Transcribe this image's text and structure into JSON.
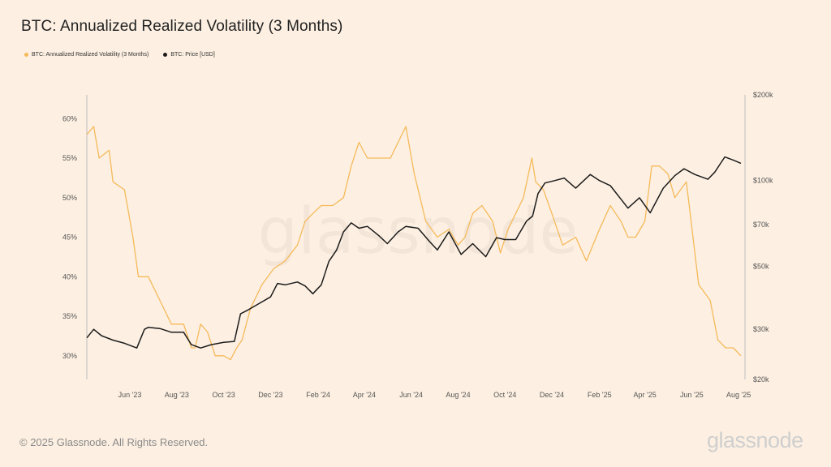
{
  "title": "BTC: Annualized Realized Volatility (3 Months)",
  "legend": {
    "vol_label": "BTC: Annualized Realized Volatility (3 Months)",
    "price_label": "BTC: Price [USD]"
  },
  "footer": "© 2025 Glassnode. All Rights Reserved.",
  "brand": "glassnode",
  "watermark": "glassnode",
  "colors": {
    "background": "#fdf0e2",
    "volatility": "#f5b95a",
    "price": "#1c1c1c",
    "axis": "#bdbdbd",
    "tick_text": "#555555"
  },
  "chart_data": {
    "type": "line",
    "title": "BTC: Annualized Realized Volatility (3 Months)",
    "legend_position": "top-left",
    "grid": false,
    "x_range": [
      "2023-04-06",
      "2025-08-04"
    ],
    "x_ticks": [
      {
        "date": "2023-06-01",
        "label": "Jun '23"
      },
      {
        "date": "2023-08-01",
        "label": "Aug '23"
      },
      {
        "date": "2023-10-01",
        "label": "Oct '23"
      },
      {
        "date": "2023-12-01",
        "label": "Dec '23"
      },
      {
        "date": "2024-02-01",
        "label": "Feb '24"
      },
      {
        "date": "2024-04-01",
        "label": "Apr '24"
      },
      {
        "date": "2024-06-01",
        "label": "Jun '24"
      },
      {
        "date": "2024-08-01",
        "label": "Aug '24"
      },
      {
        "date": "2024-10-01",
        "label": "Oct '24"
      },
      {
        "date": "2024-12-01",
        "label": "Dec '24"
      },
      {
        "date": "2025-02-01",
        "label": "Feb '25"
      },
      {
        "date": "2025-04-01",
        "label": "Apr '25"
      },
      {
        "date": "2025-06-01",
        "label": "Jun '25"
      },
      {
        "date": "2025-08-01",
        "label": "Aug '25"
      }
    ],
    "y_left": {
      "unit": "%",
      "range": [
        27,
        63
      ],
      "ticks": [
        {
          "value": 30,
          "label": "30%"
        },
        {
          "value": 35,
          "label": "35%"
        },
        {
          "value": 40,
          "label": "40%"
        },
        {
          "value": 45,
          "label": "45%"
        },
        {
          "value": 50,
          "label": "50%"
        },
        {
          "value": 55,
          "label": "55%"
        },
        {
          "value": 60,
          "label": "60%"
        }
      ]
    },
    "y_right": {
      "unit": "USD",
      "scale": "log",
      "range": [
        20000,
        200000
      ],
      "ticks": [
        {
          "value": 20000,
          "label": "$20k"
        },
        {
          "value": 30000,
          "label": "$30k"
        },
        {
          "value": 50000,
          "label": "$50k"
        },
        {
          "value": 70000,
          "label": "$70k"
        },
        {
          "value": 100000,
          "label": "$100k"
        },
        {
          "value": 200000,
          "label": "$200k"
        }
      ]
    },
    "series": [
      {
        "name": "BTC: Annualized Realized Volatility (3 Months)",
        "axis": "left",
        "x": [
          "2023-04-06",
          "2023-04-15",
          "2023-04-22",
          "2023-05-05",
          "2023-05-10",
          "2023-05-25",
          "2023-06-05",
          "2023-06-12",
          "2023-06-25",
          "2023-07-10",
          "2023-07-25",
          "2023-08-10",
          "2023-08-20",
          "2023-08-25",
          "2023-09-01",
          "2023-09-10",
          "2023-09-20",
          "2023-10-01",
          "2023-10-10",
          "2023-10-18",
          "2023-10-25",
          "2023-11-05",
          "2023-11-20",
          "2023-12-05",
          "2023-12-20",
          "2024-01-05",
          "2024-01-15",
          "2024-01-25",
          "2024-02-05",
          "2024-02-20",
          "2024-03-05",
          "2024-03-15",
          "2024-03-25",
          "2024-04-05",
          "2024-04-20",
          "2024-05-05",
          "2024-05-15",
          "2024-05-25",
          "2024-06-05",
          "2024-06-20",
          "2024-07-05",
          "2024-07-20",
          "2024-08-01",
          "2024-08-10",
          "2024-08-20",
          "2024-09-01",
          "2024-09-15",
          "2024-09-25",
          "2024-10-05",
          "2024-10-15",
          "2024-10-25",
          "2024-11-05",
          "2024-11-10",
          "2024-11-20",
          "2024-12-01",
          "2024-12-15",
          "2025-01-01",
          "2025-01-15",
          "2025-02-01",
          "2025-02-15",
          "2025-03-01",
          "2025-03-10",
          "2025-03-20",
          "2025-04-01",
          "2025-04-10",
          "2025-04-20",
          "2025-05-01",
          "2025-05-10",
          "2025-05-25",
          "2025-06-10",
          "2025-06-25",
          "2025-07-05",
          "2025-07-15",
          "2025-07-25",
          "2025-08-04"
        ],
        "values": [
          58,
          59,
          55,
          56,
          52,
          51,
          45,
          40,
          40,
          37,
          34,
          34,
          31,
          31,
          34,
          33,
          30,
          30,
          29.5,
          31,
          32,
          36,
          39,
          41,
          42,
          44,
          47,
          48,
          49,
          49,
          50,
          54,
          57,
          55,
          55,
          55,
          57,
          59,
          53,
          47,
          45,
          46,
          44,
          45,
          48,
          49,
          47,
          43,
          46,
          48,
          50,
          55,
          52,
          51,
          48,
          44,
          45,
          42,
          46,
          49,
          47,
          45,
          45,
          47,
          54,
          54,
          53,
          50,
          52,
          39,
          37,
          32,
          31,
          31,
          30
        ]
      },
      {
        "name": "BTC: Price [USD]",
        "axis": "right",
        "x": [
          "2023-04-06",
          "2023-04-15",
          "2023-04-25",
          "2023-05-10",
          "2023-05-25",
          "2023-06-10",
          "2023-06-20",
          "2023-06-25",
          "2023-07-10",
          "2023-07-25",
          "2023-08-10",
          "2023-08-20",
          "2023-09-01",
          "2023-09-15",
          "2023-10-01",
          "2023-10-15",
          "2023-10-23",
          "2023-11-01",
          "2023-11-15",
          "2023-12-01",
          "2023-12-10",
          "2023-12-20",
          "2024-01-05",
          "2024-01-15",
          "2024-01-25",
          "2024-02-05",
          "2024-02-15",
          "2024-02-25",
          "2024-03-05",
          "2024-03-15",
          "2024-03-25",
          "2024-04-05",
          "2024-04-20",
          "2024-05-01",
          "2024-05-15",
          "2024-05-25",
          "2024-06-10",
          "2024-06-25",
          "2024-07-05",
          "2024-07-20",
          "2024-08-05",
          "2024-08-20",
          "2024-09-06",
          "2024-09-20",
          "2024-10-01",
          "2024-10-15",
          "2024-10-29",
          "2024-11-06",
          "2024-11-13",
          "2024-11-22",
          "2024-12-05",
          "2024-12-17",
          "2025-01-01",
          "2025-01-20",
          "2025-02-01",
          "2025-02-15",
          "2025-03-01",
          "2025-03-10",
          "2025-03-25",
          "2025-04-08",
          "2025-04-25",
          "2025-05-10",
          "2025-05-22",
          "2025-06-05",
          "2025-06-22",
          "2025-07-01",
          "2025-07-14",
          "2025-07-25",
          "2025-08-04"
        ],
        "values": [
          28000,
          30000,
          28500,
          27500,
          26800,
          25800,
          30000,
          30500,
          30200,
          29300,
          29300,
          26500,
          25800,
          26500,
          27000,
          27200,
          34000,
          35000,
          36800,
          39000,
          43500,
          43000,
          44000,
          42600,
          40000,
          43000,
          52000,
          57000,
          66000,
          71000,
          68000,
          69000,
          64000,
          60000,
          66000,
          69000,
          68000,
          61000,
          57000,
          66000,
          55000,
          60000,
          54000,
          63000,
          62000,
          62000,
          72000,
          75000,
          90000,
          98000,
          100000,
          102000,
          94000,
          105000,
          100000,
          96000,
          86000,
          80000,
          87000,
          77000,
          94000,
          104000,
          110000,
          105000,
          101000,
          107000,
          121000,
          118000,
          115000
        ]
      }
    ]
  }
}
